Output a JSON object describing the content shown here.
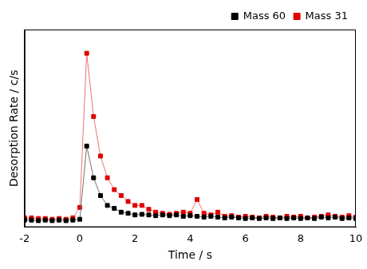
{
  "chart_data": {
    "type": "line",
    "x_label": "Time / s",
    "y_label": "Desorption Rate / c/s",
    "x": [
      -2,
      -1.75,
      -1.5,
      -1.25,
      -1,
      -0.75,
      -0.5,
      -0.25,
      0,
      0.25,
      0.5,
      0.75,
      1,
      1.25,
      1.5,
      1.75,
      2,
      2.25,
      2.5,
      2.75,
      3,
      3.25,
      3.5,
      3.75,
      4,
      4.25,
      4.5,
      4.75,
      5,
      5.25,
      5.5,
      5.75,
      6,
      6.25,
      6.5,
      6.75,
      7,
      7.25,
      7.5,
      7.75,
      8,
      8.25,
      8.5,
      8.75,
      9,
      9.25,
      9.5,
      9.75,
      10
    ],
    "series": [
      {
        "name": "Mass 60",
        "color": "#000000",
        "marker": "square",
        "line_style": "solid",
        "values": [
          3.6,
          3.6,
          3.3,
          3.6,
          3.3,
          3.6,
          3.3,
          3.6,
          4.0,
          41,
          25,
          16,
          11,
          9.5,
          7.6,
          7,
          6.2,
          6.5,
          6.2,
          5.8,
          6.2,
          5.8,
          6.2,
          5.5,
          5.8,
          5.5,
          5.1,
          5.5,
          5.1,
          4.7,
          5.1,
          4.7,
          4.4,
          4.7,
          4.4,
          4.7,
          4.4,
          4.7,
          4.4,
          4.7,
          4.4,
          4.7,
          4.4,
          5.1,
          4.7,
          5.1,
          4.4,
          4.7,
          4.4
        ]
      },
      {
        "name": "Mass 31",
        "color": "#e00000",
        "marker": "square",
        "line_style": "solid",
        "values": [
          4.7,
          4.7,
          4.4,
          4.4,
          4.0,
          4.4,
          4.0,
          4.7,
          10,
          88,
          56,
          36,
          25,
          19,
          16,
          13,
          11,
          11,
          9,
          7.6,
          7,
          6.5,
          7,
          7.6,
          7,
          14,
          7,
          6.2,
          7.6,
          5.5,
          5.8,
          5.1,
          5.5,
          5.1,
          4.7,
          5.5,
          5.1,
          4.7,
          5.5,
          5.1,
          5.5,
          4.7,
          5.1,
          5.5,
          6.2,
          5.5,
          5.1,
          5.8,
          5.1
        ]
      }
    ],
    "xlim": [
      -2,
      10
    ],
    "xticks": [
      -2,
      0,
      2,
      4,
      6,
      8,
      10
    ],
    "ylim": [
      0,
      100
    ],
    "tick_labels": "x",
    "grid": false,
    "legend": "upper right"
  }
}
